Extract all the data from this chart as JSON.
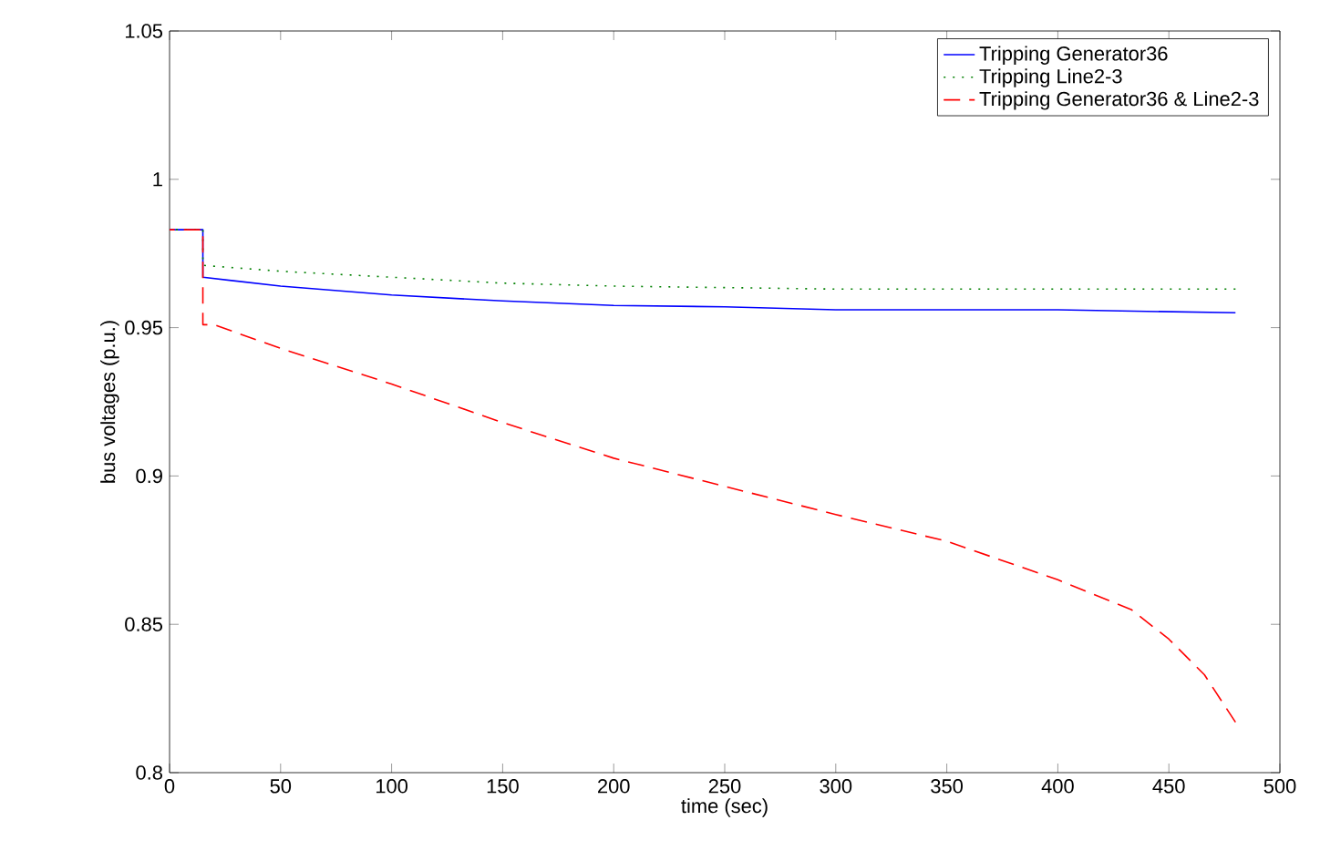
{
  "chart_data": {
    "type": "line",
    "xlabel": "time (sec)",
    "ylabel": "bus voltages (p.u.)",
    "xlim": [
      0,
      500
    ],
    "ylim": [
      0.8,
      1.05
    ],
    "xticks": [
      0,
      50,
      100,
      150,
      200,
      250,
      300,
      350,
      400,
      450,
      500
    ],
    "yticks": [
      0.8,
      0.85,
      0.9,
      0.95,
      1,
      1.05
    ],
    "grid": false,
    "legend": "top right",
    "series": [
      {
        "name": "Tripping Generator36",
        "color": "#0000ff",
        "line_style": "solid",
        "x": [
          0,
          15,
          15,
          50,
          100,
          150,
          200,
          250,
          300,
          400,
          480
        ],
        "values": [
          0.983,
          0.983,
          0.967,
          0.964,
          0.961,
          0.959,
          0.9575,
          0.957,
          0.956,
          0.956,
          0.955
        ]
      },
      {
        "name": "Tripping Line2-3",
        "color": "#008000",
        "line_style": "dotted",
        "x": [
          0,
          15,
          15,
          50,
          100,
          150,
          200,
          300,
          480
        ],
        "values": [
          0.983,
          0.983,
          0.971,
          0.969,
          0.967,
          0.965,
          0.964,
          0.963,
          0.963
        ]
      },
      {
        "name": "Tripping Generator36 & Line2-3",
        "color": "#ff0000",
        "line_style": "dashed",
        "x": [
          0,
          15,
          15,
          20,
          50,
          100,
          150,
          200,
          250,
          300,
          350,
          400,
          433,
          450,
          466,
          480
        ],
        "values": [
          0.983,
          0.983,
          0.951,
          0.951,
          0.943,
          0.931,
          0.918,
          0.906,
          0.8965,
          0.887,
          0.878,
          0.865,
          0.855,
          0.845,
          0.833,
          0.817
        ]
      }
    ]
  }
}
